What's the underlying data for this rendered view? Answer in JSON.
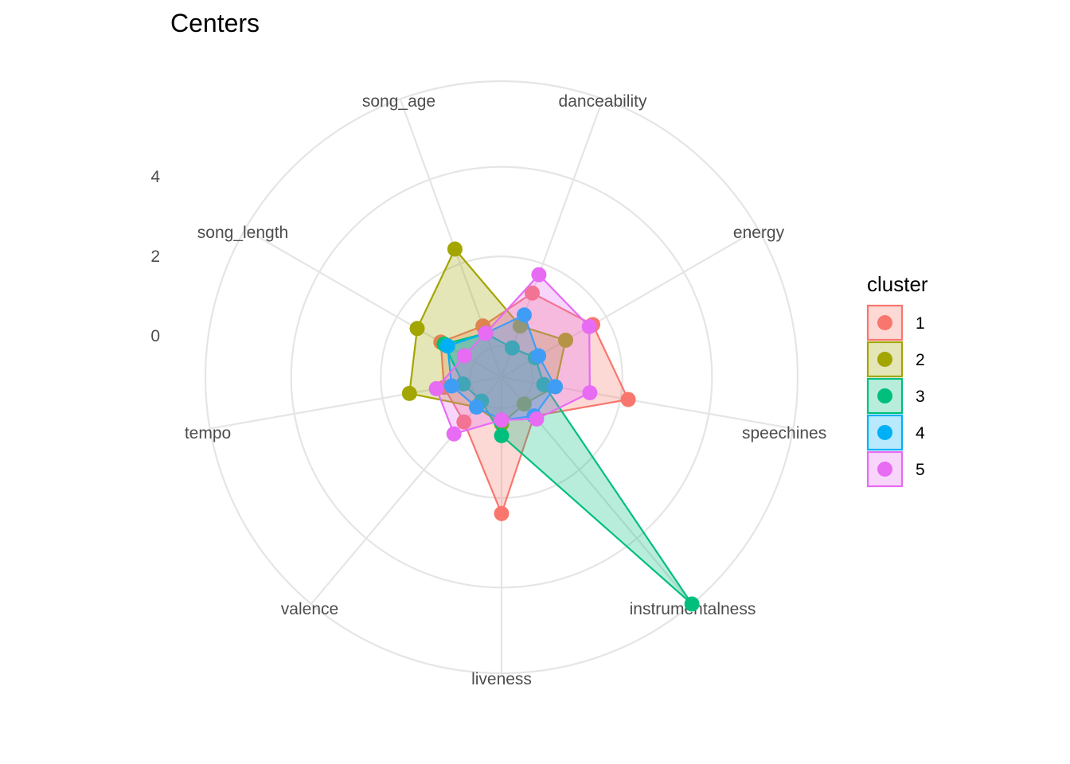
{
  "chart_data": {
    "type": "radar",
    "title": "Centers",
    "axes": [
      "danceability",
      "energy",
      "speechiness",
      "instrumentalness",
      "liveness",
      "valence",
      "tempo",
      "song_length",
      "song_age"
    ],
    "axis_labels_shown": [
      "danceability",
      "energy",
      "speechines",
      "instrumentalness",
      "liveness",
      "valence",
      "tempo",
      "song_length",
      "song_age"
    ],
    "radial_ticks": [
      "4",
      "2",
      "0"
    ],
    "radial_tick_values": [
      4,
      2,
      0
    ],
    "radial_min": -2,
    "radial_max": 5.6,
    "grid_rings": [
      -1.2,
      1.1,
      3.4,
      5.6
    ],
    "grid": true,
    "legend_title": "cluster",
    "legend_position": "right",
    "series": [
      {
        "name": "1",
        "color": "#F8766D",
        "values": [
          0.3,
          0.7,
          1.3,
          -0.7,
          1.5,
          -0.5,
          -0.5,
          -0.2,
          -0.6
        ]
      },
      {
        "name": "2",
        "color": "#A3A500",
        "values": [
          -0.6,
          -0.1,
          -0.6,
          -1.1,
          -0.8,
          -1.0,
          0.4,
          0.5,
          1.5
        ]
      },
      {
        "name": "3",
        "color": "#00BF7D",
        "values": [
          -1.2,
          -1.0,
          -0.9,
          5.6,
          -0.5,
          -1.2,
          -1.0,
          -0.3,
          -0.8
        ]
      },
      {
        "name": "4",
        "color": "#00B0F6",
        "values": [
          -0.3,
          -0.9,
          -0.6,
          -0.7,
          -0.9,
          -1.0,
          -0.7,
          -0.4,
          -0.8
        ]
      },
      {
        "name": "5",
        "color": "#E76BF3",
        "values": [
          0.8,
          0.6,
          0.3,
          -0.6,
          -0.9,
          -0.1,
          -0.3,
          -0.9,
          -0.8
        ]
      }
    ]
  }
}
